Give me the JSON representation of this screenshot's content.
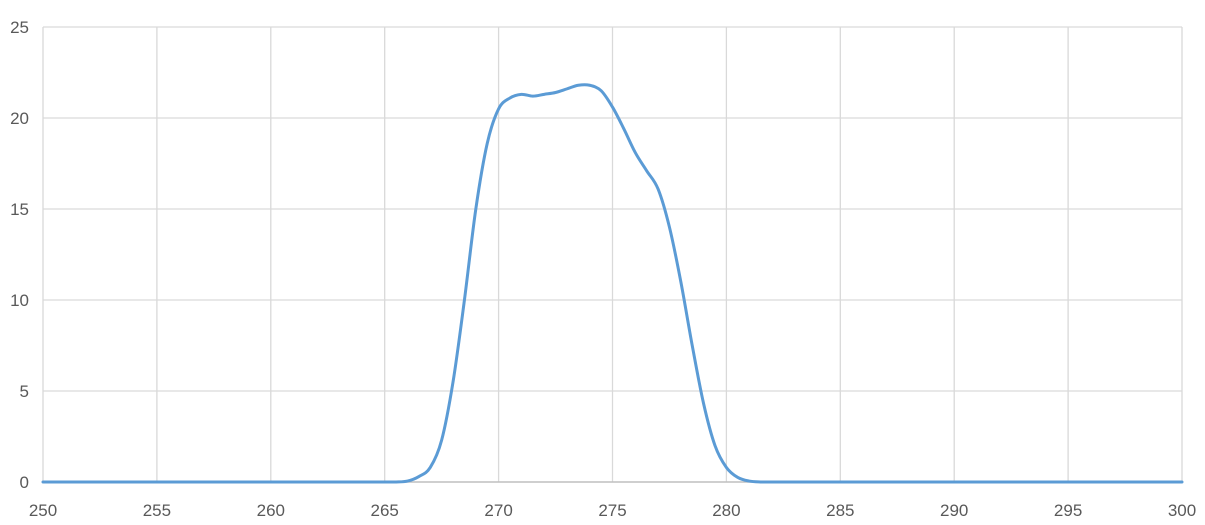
{
  "chart_data": {
    "type": "line",
    "title": "",
    "xlabel": "",
    "ylabel": "",
    "xlim": [
      250,
      300
    ],
    "ylim": [
      0,
      25
    ],
    "x_ticks": [
      250,
      255,
      260,
      265,
      270,
      275,
      280,
      285,
      290,
      295,
      300
    ],
    "y_ticks": [
      0,
      5,
      10,
      15,
      20,
      25
    ],
    "grid": true,
    "legend": "none",
    "colors": {
      "series": "#5b9bd5",
      "grid": "#d9d9d9",
      "axis": "#bfbfbf",
      "tick_text": "#595959"
    },
    "series": [
      {
        "x": [
          250,
          255,
          260,
          265,
          265.5,
          266,
          266.5,
          267,
          267.5,
          268,
          268.5,
          269,
          269.5,
          270,
          270.5,
          271,
          271.5,
          272,
          272.5,
          273,
          273.5,
          274,
          274.5,
          275,
          275.5,
          276,
          276.5,
          277,
          277.5,
          278,
          278.5,
          279,
          279.5,
          280,
          280.5,
          281,
          281.5,
          282,
          282.5,
          283,
          283.5,
          284,
          285,
          290,
          295,
          300
        ],
        "y": [
          0,
          0,
          0,
          0,
          0,
          0.05,
          0.3,
          0.8,
          2.3,
          5.5,
          10,
          15,
          18.6,
          20.5,
          21.1,
          21.3,
          21.2,
          21.3,
          21.4,
          21.6,
          21.8,
          21.8,
          21.5,
          20.6,
          19.4,
          18.1,
          17.1,
          16.1,
          14.0,
          11.0,
          7.5,
          4.3,
          2.0,
          0.8,
          0.25,
          0.05,
          0,
          0,
          0,
          0,
          0,
          0,
          0,
          0,
          0,
          0
        ]
      }
    ]
  }
}
